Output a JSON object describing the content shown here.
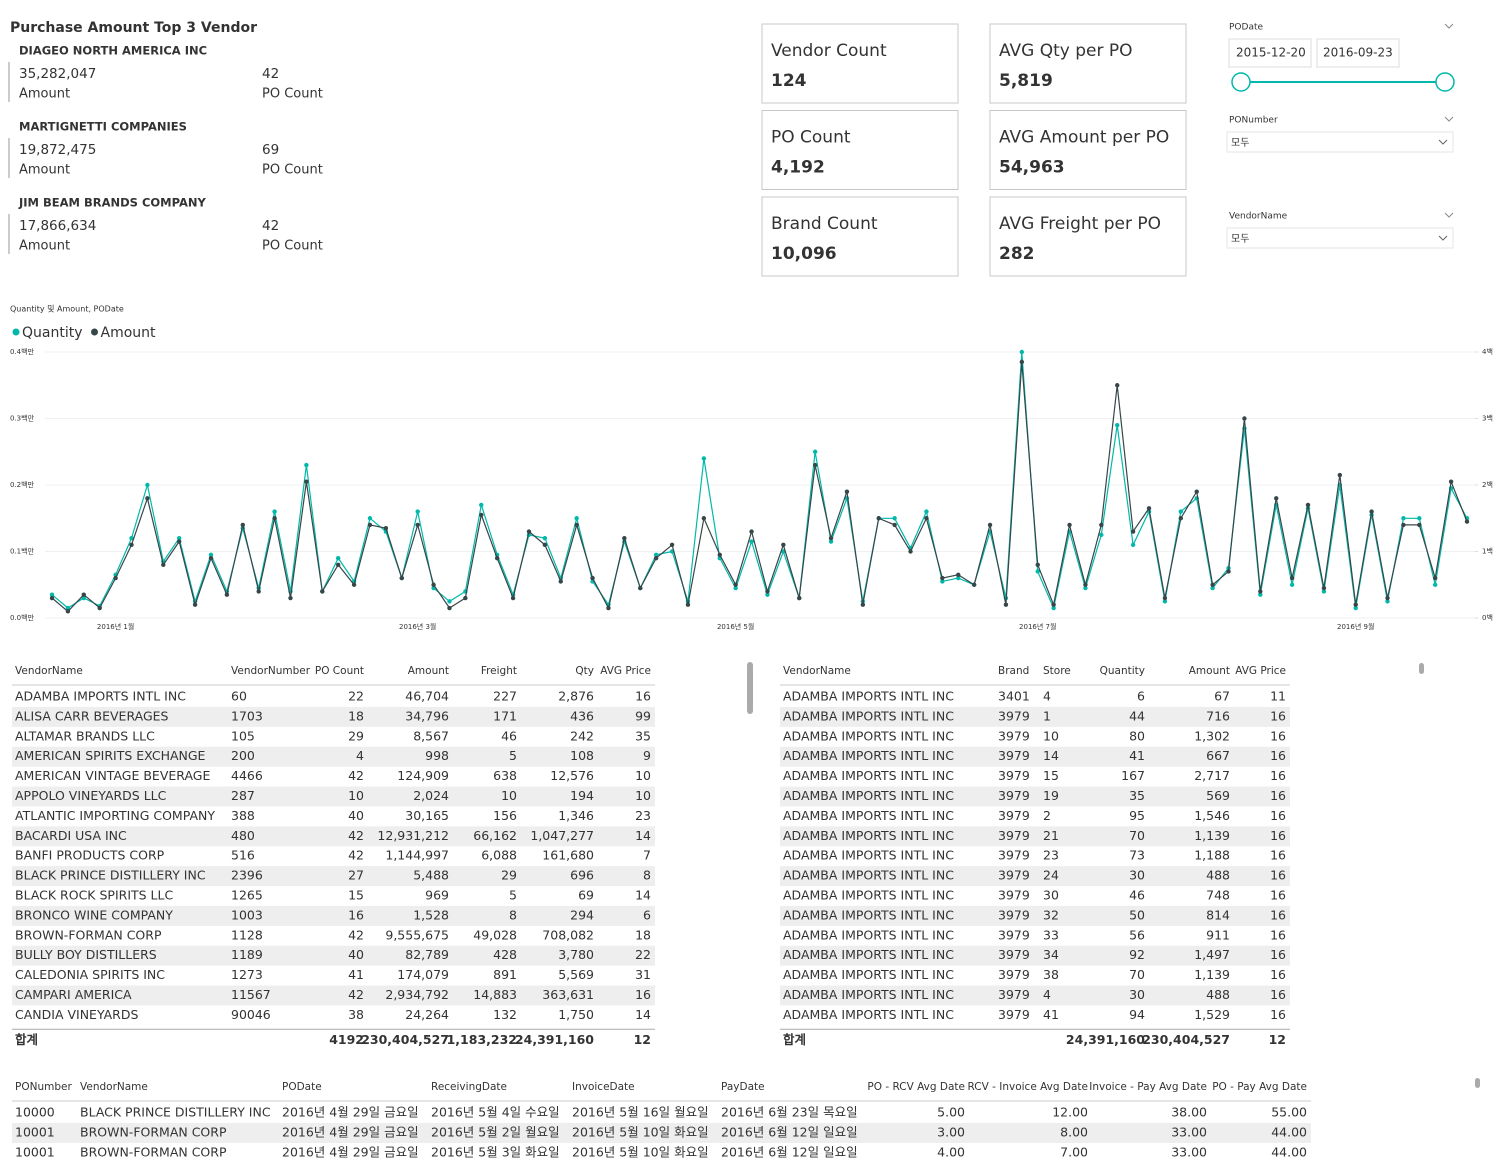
{
  "top_vendors": {
    "title": "Purchase Amount Top 3 Vendor",
    "items": [
      {
        "name": "DIAGEO NORTH AMERICA INC",
        "amount": "35,282,047",
        "amount_label": "Amount",
        "po_count": "42",
        "po_count_label": "PO Count"
      },
      {
        "name": "MARTIGNETTI COMPANIES",
        "amount": "19,872,475",
        "amount_label": "Amount",
        "po_count": "69",
        "po_count_label": "PO Count"
      },
      {
        "name": "JIM BEAM BRANDS COMPANY",
        "amount": "17,866,634",
        "amount_label": "Amount",
        "po_count": "42",
        "po_count_label": "PO Count"
      }
    ]
  },
  "cards": [
    {
      "label": "Vendor Count",
      "value": "124"
    },
    {
      "label": "PO Count",
      "value": "4,192"
    },
    {
      "label": "Brand Count",
      "value": "10,096"
    },
    {
      "label": "AVG Qty per PO",
      "value": "5,819"
    },
    {
      "label": "AVG Amount per PO",
      "value": "54,963"
    },
    {
      "label": "AVG Freight per PO",
      "value": "282"
    }
  ],
  "slicers": {
    "podate": {
      "label": "PODate",
      "start": "2015-12-20",
      "end": "2016-09-23"
    },
    "ponumber": {
      "label": "PONumber",
      "value": "모두"
    },
    "vendorname": {
      "label": "VendorName",
      "value": "모두"
    }
  },
  "chart_data": {
    "type": "line",
    "title": "Quantity 및 Amount, PODate",
    "categories": [
      null,
      null,
      null,
      null,
      "2016년 1월",
      null,
      null,
      null,
      null,
      null,
      null,
      null,
      null,
      null,
      null,
      null,
      null,
      null,
      null,
      null,
      null,
      null,
      null,
      "2016년 3월",
      null,
      null,
      null,
      null,
      null,
      null,
      null,
      null,
      null,
      null,
      null,
      null,
      null,
      null,
      null,
      null,
      null,
      null,
      null,
      "2016년 5월",
      null,
      null,
      null,
      null,
      null,
      null,
      null,
      null,
      null,
      null,
      null,
      null,
      null,
      null,
      null,
      null,
      null,
      null,
      "2016년 7월",
      null,
      null,
      null,
      null,
      null,
      null,
      null,
      null,
      null,
      null,
      null,
      null,
      null,
      null,
      null,
      null,
      null,
      null,
      null,
      "2016년 9월",
      null,
      null,
      null,
      null,
      null,
      null,
      null
    ],
    "series": [
      {
        "name": "Quantity",
        "color": "#01B8AA",
        "axis": "y2",
        "values": [
          35,
          15,
          30,
          18,
          65,
          120,
          200,
          85,
          120,
          25,
          95,
          40,
          135,
          45,
          160,
          40,
          230,
          40,
          90,
          55,
          150,
          130,
          60,
          160,
          45,
          25,
          40,
          170,
          95,
          35,
          125,
          120,
          60,
          150,
          55,
          20,
          115,
          45,
          95,
          100,
          25,
          240,
          90,
          45,
          115,
          35,
          100,
          30,
          250,
          115,
          180,
          25,
          150,
          150,
          105,
          160,
          55,
          60,
          50,
          130,
          30,
          400,
          70,
          15,
          130,
          45,
          125,
          290,
          110,
          160,
          25,
          160,
          180,
          45,
          75,
          285,
          35,
          170,
          50,
          165,
          40,
          200,
          15,
          155,
          25,
          150,
          150,
          50,
          195,
          150
        ]
      },
      {
        "name": "Amount",
        "color": "#374649",
        "values": [
          30000,
          10000,
          35000,
          15000,
          60000,
          110000,
          180000,
          80000,
          115000,
          20000,
          90000,
          35000,
          140000,
          40000,
          150000,
          30000,
          205000,
          40000,
          80000,
          50000,
          140000,
          135000,
          60000,
          140000,
          50000,
          15000,
          30000,
          155000,
          90000,
          30000,
          130000,
          110000,
          55000,
          140000,
          60000,
          15000,
          120000,
          45000,
          90000,
          110000,
          20000,
          150000,
          95000,
          50000,
          130000,
          40000,
          110000,
          30000,
          230000,
          120000,
          190000,
          20000,
          150000,
          140000,
          100000,
          150000,
          60000,
          65000,
          50000,
          140000,
          20000,
          385000,
          80000,
          20000,
          140000,
          50000,
          140000,
          350000,
          130000,
          165000,
          30000,
          150000,
          190000,
          50000,
          70000,
          300000,
          40000,
          180000,
          60000,
          170000,
          45000,
          215000,
          20000,
          160000,
          30000,
          140000,
          140000,
          60000,
          205000,
          145000
        ]
      }
    ],
    "ylim": [
      0,
      400000
    ],
    "yticks": [
      {
        "value": 0,
        "label": "0.0백만"
      },
      {
        "value": 100000,
        "label": "0.1백만"
      },
      {
        "value": 200000,
        "label": "0.2백만"
      },
      {
        "value": 300000,
        "label": "0.3백만"
      },
      {
        "value": 400000,
        "label": "0.4백만"
      }
    ],
    "y2lim": [
      0,
      400
    ],
    "y2ticks": [
      {
        "value": 0,
        "label": "0백"
      },
      {
        "value": 100,
        "label": "1백"
      },
      {
        "value": 200,
        "label": "2백"
      },
      {
        "value": 300,
        "label": "3백"
      },
      {
        "value": 400,
        "label": "4백"
      }
    ],
    "grid": true,
    "legend": "top-left"
  },
  "vendor_table": {
    "columns": [
      "VendorName",
      "VendorNumber",
      "PO Count",
      "Amount",
      "Freight",
      "Qty",
      "AVG Price"
    ],
    "rows": [
      [
        "ADAMBA IMPORTS INTL INC",
        "60",
        "22",
        "46,704",
        "227",
        "2,876",
        "16"
      ],
      [
        "ALISA CARR BEVERAGES",
        "1703",
        "18",
        "34,796",
        "171",
        "436",
        "99"
      ],
      [
        "ALTAMAR BRANDS LLC",
        "105",
        "29",
        "8,567",
        "46",
        "242",
        "35"
      ],
      [
        "AMERICAN SPIRITS EXCHANGE",
        "200",
        "4",
        "998",
        "5",
        "108",
        "9"
      ],
      [
        "AMERICAN VINTAGE BEVERAGE",
        "4466",
        "42",
        "124,909",
        "638",
        "12,576",
        "10"
      ],
      [
        "APPOLO VINEYARDS LLC",
        "287",
        "10",
        "2,024",
        "10",
        "194",
        "10"
      ],
      [
        "ATLANTIC IMPORTING COMPANY",
        "388",
        "40",
        "30,165",
        "156",
        "1,346",
        "23"
      ],
      [
        "BACARDI USA INC",
        "480",
        "42",
        "12,931,212",
        "66,162",
        "1,047,277",
        "14"
      ],
      [
        "BANFI PRODUCTS CORP",
        "516",
        "42",
        "1,144,997",
        "6,088",
        "161,680",
        "7"
      ],
      [
        "BLACK PRINCE DISTILLERY INC",
        "2396",
        "27",
        "5,488",
        "29",
        "696",
        "8"
      ],
      [
        "BLACK ROCK SPIRITS LLC",
        "1265",
        "15",
        "969",
        "5",
        "69",
        "14"
      ],
      [
        "BRONCO WINE COMPANY",
        "1003",
        "16",
        "1,528",
        "8",
        "294",
        "6"
      ],
      [
        "BROWN-FORMAN CORP",
        "1128",
        "42",
        "9,555,675",
        "49,028",
        "708,082",
        "18"
      ],
      [
        "BULLY BOY DISTILLERS",
        "1189",
        "40",
        "82,789",
        "428",
        "3,780",
        "22"
      ],
      [
        "CALEDONIA SPIRITS INC",
        "1273",
        "41",
        "174,079",
        "891",
        "5,569",
        "31"
      ],
      [
        "CAMPARI AMERICA",
        "11567",
        "42",
        "2,934,792",
        "14,883",
        "363,631",
        "16"
      ],
      [
        "CANDIA VINEYARDS",
        "90046",
        "38",
        "24,264",
        "132",
        "1,750",
        "14"
      ]
    ],
    "total": [
      "합계",
      null,
      "4192",
      "230,404,527",
      "1,183,232",
      "24,391,160",
      "12"
    ]
  },
  "detail_table": {
    "columns": [
      "VendorName",
      "Brand",
      "Store",
      "Quantity",
      "Amount",
      "AVG Price"
    ],
    "rows": [
      [
        "ADAMBA IMPORTS INTL INC",
        "3401",
        "4",
        "6",
        "67",
        "11"
      ],
      [
        "ADAMBA IMPORTS INTL INC",
        "3979",
        "1",
        "44",
        "716",
        "16"
      ],
      [
        "ADAMBA IMPORTS INTL INC",
        "3979",
        "10",
        "80",
        "1,302",
        "16"
      ],
      [
        "ADAMBA IMPORTS INTL INC",
        "3979",
        "14",
        "41",
        "667",
        "16"
      ],
      [
        "ADAMBA IMPORTS INTL INC",
        "3979",
        "15",
        "167",
        "2,717",
        "16"
      ],
      [
        "ADAMBA IMPORTS INTL INC",
        "3979",
        "19",
        "35",
        "569",
        "16"
      ],
      [
        "ADAMBA IMPORTS INTL INC",
        "3979",
        "2",
        "95",
        "1,546",
        "16"
      ],
      [
        "ADAMBA IMPORTS INTL INC",
        "3979",
        "21",
        "70",
        "1,139",
        "16"
      ],
      [
        "ADAMBA IMPORTS INTL INC",
        "3979",
        "23",
        "73",
        "1,188",
        "16"
      ],
      [
        "ADAMBA IMPORTS INTL INC",
        "3979",
        "24",
        "30",
        "488",
        "16"
      ],
      [
        "ADAMBA IMPORTS INTL INC",
        "3979",
        "30",
        "46",
        "748",
        "16"
      ],
      [
        "ADAMBA IMPORTS INTL INC",
        "3979",
        "32",
        "50",
        "814",
        "16"
      ],
      [
        "ADAMBA IMPORTS INTL INC",
        "3979",
        "33",
        "56",
        "911",
        "16"
      ],
      [
        "ADAMBA IMPORTS INTL INC",
        "3979",
        "34",
        "92",
        "1,497",
        "16"
      ],
      [
        "ADAMBA IMPORTS INTL INC",
        "3979",
        "38",
        "70",
        "1,139",
        "16"
      ],
      [
        "ADAMBA IMPORTS INTL INC",
        "3979",
        "4",
        "30",
        "488",
        "16"
      ],
      [
        "ADAMBA IMPORTS INTL INC",
        "3979",
        "41",
        "94",
        "1,529",
        "16"
      ]
    ],
    "total": [
      "합계",
      null,
      null,
      "24,391,160",
      "230,404,527",
      "12"
    ]
  },
  "po_table": {
    "columns": [
      "PONumber",
      "VendorName",
      "PODate",
      "ReceivingDate",
      "InvoiceDate",
      "PayDate",
      "PO - RCV Avg Date",
      "RCV - Invoice Avg Date",
      "Invoice - Pay Avg Date",
      "PO - Pay Avg Date"
    ],
    "rows": [
      [
        "10000",
        "BLACK PRINCE DISTILLERY INC",
        "2016년 4월 29일 금요일",
        "2016년 5월 4일 수요일",
        "2016년 5월 16일 월요일",
        "2016년 6월 23일 목요일",
        "5.00",
        "12.00",
        "38.00",
        "55.00"
      ],
      [
        "10001",
        "BROWN-FORMAN CORP",
        "2016년 4월 29일 금요일",
        "2016년 5월 2일 월요일",
        "2016년 5월 10일 화요일",
        "2016년 6월 12일 일요일",
        "3.00",
        "8.00",
        "33.00",
        "44.00"
      ],
      [
        "10001",
        "BROWN-FORMAN CORP",
        "2016년 4월 29일 금요일",
        "2016년 5월 3일 화요일",
        "2016년 5월 10일 화요일",
        "2016년 6월 12일 일요일",
        "4.00",
        "7.00",
        "33.00",
        "44.00"
      ]
    ]
  }
}
